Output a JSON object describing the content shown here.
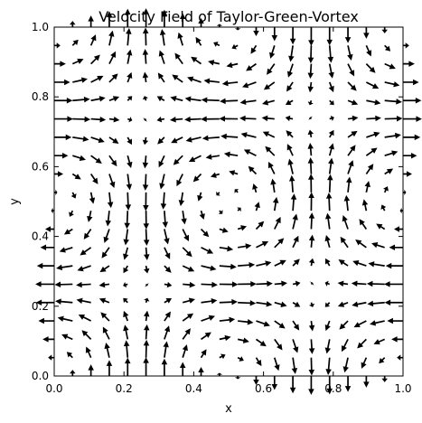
{
  "chart_data": {
    "type": "quiver",
    "title": "Velocity Field of Taylor-Green-Vortex",
    "xlabel": "x",
    "ylabel": "y",
    "xlim": [
      0,
      1
    ],
    "ylim": [
      0,
      1
    ],
    "grid": false,
    "x_ticks": [
      "0.0",
      "0.2",
      "0.4",
      "0.6",
      "0.8",
      "1.0"
    ],
    "y_ticks": [
      "0.0",
      "0.2",
      "0.4",
      "0.6",
      "0.8",
      "1.0"
    ],
    "field": {
      "u": "-cos(2*pi*x) * sin(2*pi*y)",
      "v": "sin(2*pi*x) * cos(2*pi*y)",
      "grid_n": 20,
      "x_start": 0.0,
      "x_end": 1.0,
      "y_start": 0.0,
      "y_end": 1.0
    },
    "arrow_color": "#000000"
  }
}
